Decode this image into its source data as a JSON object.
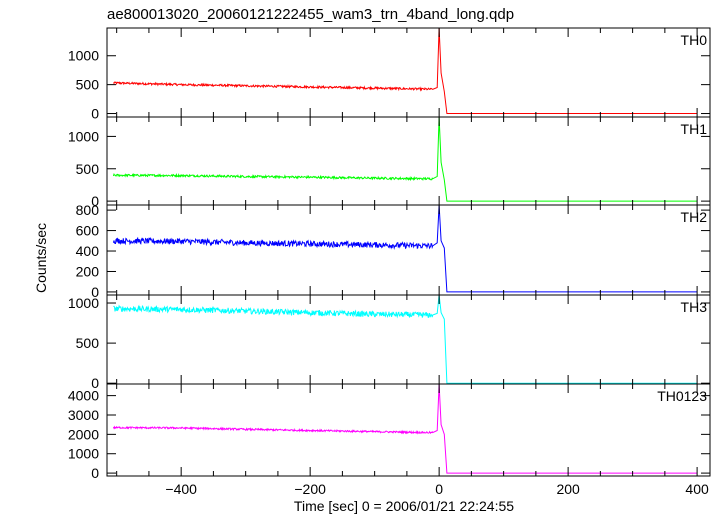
{
  "chart_data": {
    "type": "line",
    "title": "ae800013020_20060121222455_wam3_trn_4band_long.qdp",
    "xlabel": "Time [sec] 0 = 2006/01/21 22:24:55",
    "ylabel": "Counts/sec",
    "xlim": [
      -515,
      420
    ],
    "x_ticks": [
      -400,
      -200,
      0,
      200,
      400
    ],
    "x_tick_labels": [
      "−400",
      "−200",
      "0",
      "200",
      "400"
    ],
    "shared_x": true,
    "grid": false,
    "panels": [
      {
        "name": "TH0",
        "color": "#ff0000",
        "ylim": [
          -60,
          1480
        ],
        "y_ticks": [
          0,
          500,
          1000
        ],
        "y_tick_labels": [
          "0",
          "500",
          "1000"
        ],
        "series": [
          {
            "x": -505,
            "y": 530
          },
          {
            "x": -400,
            "y": 500
          },
          {
            "x": -300,
            "y": 480
          },
          {
            "x": -200,
            "y": 460
          },
          {
            "x": -100,
            "y": 440
          },
          {
            "x": -10,
            "y": 420
          },
          {
            "x": -3,
            "y": 450
          },
          {
            "x": 0,
            "y": 1480
          },
          {
            "x": 3,
            "y": 700
          },
          {
            "x": 8,
            "y": 380
          },
          {
            "x": 12,
            "y": 0
          },
          {
            "x": 400,
            "y": 0
          }
        ],
        "noise": 18
      },
      {
        "name": "TH1",
        "color": "#00ff00",
        "ylim": [
          -60,
          1300
        ],
        "y_ticks": [
          0,
          500,
          1000
        ],
        "y_tick_labels": [
          "0",
          "500",
          "1000"
        ],
        "series": [
          {
            "x": -505,
            "y": 400
          },
          {
            "x": -400,
            "y": 395
          },
          {
            "x": -300,
            "y": 380
          },
          {
            "x": -200,
            "y": 370
          },
          {
            "x": -100,
            "y": 355
          },
          {
            "x": -10,
            "y": 345
          },
          {
            "x": -3,
            "y": 380
          },
          {
            "x": 0,
            "y": 1300
          },
          {
            "x": 3,
            "y": 600
          },
          {
            "x": 8,
            "y": 330
          },
          {
            "x": 12,
            "y": 0
          },
          {
            "x": 400,
            "y": 0
          }
        ],
        "noise": 16
      },
      {
        "name": "TH2",
        "color": "#0000ff",
        "ylim": [
          -30,
          850
        ],
        "y_ticks": [
          0,
          200,
          400,
          600,
          800
        ],
        "y_tick_labels": [
          "0",
          "200",
          "400",
          "600",
          "800"
        ],
        "series": [
          {
            "x": -505,
            "y": 500
          },
          {
            "x": -400,
            "y": 495
          },
          {
            "x": -300,
            "y": 480
          },
          {
            "x": -200,
            "y": 470
          },
          {
            "x": -100,
            "y": 460
          },
          {
            "x": -10,
            "y": 450
          },
          {
            "x": -3,
            "y": 480
          },
          {
            "x": 0,
            "y": 850
          },
          {
            "x": 3,
            "y": 500
          },
          {
            "x": 8,
            "y": 430
          },
          {
            "x": 12,
            "y": 0
          },
          {
            "x": 400,
            "y": 0
          }
        ],
        "noise": 28
      },
      {
        "name": "TH3",
        "color": "#00ffff",
        "ylim": [
          -10,
          1100
        ],
        "y_ticks": [
          0,
          500,
          1000
        ],
        "y_tick_labels": [
          "0",
          "500",
          "1000"
        ],
        "series": [
          {
            "x": -505,
            "y": 930
          },
          {
            "x": -400,
            "y": 920
          },
          {
            "x": -300,
            "y": 900
          },
          {
            "x": -200,
            "y": 880
          },
          {
            "x": -100,
            "y": 860
          },
          {
            "x": -10,
            "y": 850
          },
          {
            "x": -3,
            "y": 870
          },
          {
            "x": 0,
            "y": 1100
          },
          {
            "x": 3,
            "y": 880
          },
          {
            "x": 8,
            "y": 800
          },
          {
            "x": 12,
            "y": 0
          },
          {
            "x": 400,
            "y": 0
          }
        ],
        "noise": 35
      },
      {
        "name": "TH0123",
        "color": "#ff00ff",
        "ylim": [
          -150,
          4600
        ],
        "y_ticks": [
          0,
          1000,
          2000,
          3000,
          4000
        ],
        "y_tick_labels": [
          "0",
          "1000",
          "2000",
          "3000",
          "4000"
        ],
        "series": [
          {
            "x": -505,
            "y": 2350
          },
          {
            "x": -400,
            "y": 2330
          },
          {
            "x": -300,
            "y": 2260
          },
          {
            "x": -200,
            "y": 2200
          },
          {
            "x": -100,
            "y": 2140
          },
          {
            "x": -10,
            "y": 2090
          },
          {
            "x": -3,
            "y": 2200
          },
          {
            "x": 0,
            "y": 4600
          },
          {
            "x": 3,
            "y": 2500
          },
          {
            "x": 8,
            "y": 2000
          },
          {
            "x": 12,
            "y": 0
          },
          {
            "x": 400,
            "y": 0
          }
        ],
        "noise": 45
      }
    ]
  }
}
